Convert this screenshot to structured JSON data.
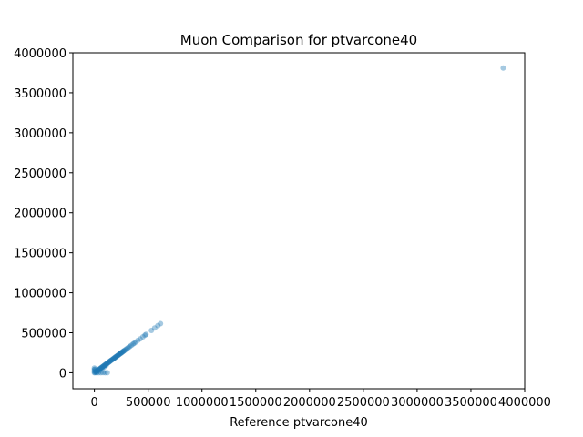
{
  "chart_data": {
    "type": "scatter",
    "title": "Muon Comparison for ptvarcone40",
    "xlabel": "Reference ptvarcone40",
    "ylabel": "",
    "xlim": [
      -200000,
      4000000
    ],
    "ylim": [
      -200000,
      4000000
    ],
    "xticks": [
      0,
      500000,
      1000000,
      1500000,
      2000000,
      2500000,
      3000000,
      3500000,
      4000000
    ],
    "xtick_labels": [
      "0",
      "500000",
      "1000000",
      "1500000",
      "2000000",
      "2500000",
      "3000000",
      "3500000",
      "4000000"
    ],
    "yticks": [
      0,
      500000,
      1000000,
      1500000,
      2000000,
      2500000,
      3000000,
      3500000,
      4000000
    ],
    "ytick_labels": [
      "0",
      "500000",
      "1000000",
      "1500000",
      "2000000",
      "2500000",
      "3000000",
      "3500000",
      "4000000"
    ],
    "grid": false,
    "marker_color": "#1f77b4",
    "marker_alpha": 0.4,
    "points": [
      [
        0,
        0
      ],
      [
        5000,
        3000
      ],
      [
        10000,
        8000
      ],
      [
        15000,
        14000
      ],
      [
        20000,
        19000
      ],
      [
        25000,
        24000
      ],
      [
        30000,
        29000
      ],
      [
        35000,
        34000
      ],
      [
        40000,
        38000
      ],
      [
        45000,
        44000
      ],
      [
        50000,
        49000
      ],
      [
        55000,
        54000
      ],
      [
        60000,
        58000
      ],
      [
        65000,
        64000
      ],
      [
        70000,
        69000
      ],
      [
        75000,
        74000
      ],
      [
        80000,
        79000
      ],
      [
        85000,
        84000
      ],
      [
        90000,
        89000
      ],
      [
        95000,
        94000
      ],
      [
        100000,
        99000
      ],
      [
        105000,
        104000
      ],
      [
        110000,
        109000
      ],
      [
        115000,
        114000
      ],
      [
        120000,
        119000
      ],
      [
        125000,
        124000
      ],
      [
        130000,
        129000
      ],
      [
        135000,
        134000
      ],
      [
        140000,
        139000
      ],
      [
        145000,
        144000
      ],
      [
        150000,
        149000
      ],
      [
        155000,
        154000
      ],
      [
        160000,
        159000
      ],
      [
        165000,
        164000
      ],
      [
        170000,
        169000
      ],
      [
        175000,
        174000
      ],
      [
        180000,
        179000
      ],
      [
        185000,
        184000
      ],
      [
        190000,
        189000
      ],
      [
        195000,
        194000
      ],
      [
        200000,
        199000
      ],
      [
        205000,
        204000
      ],
      [
        210000,
        209000
      ],
      [
        215000,
        214000
      ],
      [
        220000,
        219000
      ],
      [
        225000,
        224000
      ],
      [
        230000,
        229000
      ],
      [
        235000,
        234000
      ],
      [
        240000,
        239000
      ],
      [
        245000,
        244000
      ],
      [
        250000,
        249000
      ],
      [
        255000,
        254000
      ],
      [
        260000,
        259000
      ],
      [
        265000,
        264000
      ],
      [
        270000,
        269000
      ],
      [
        275000,
        274000
      ],
      [
        280000,
        279000
      ],
      [
        290000,
        289000
      ],
      [
        300000,
        299000
      ],
      [
        310000,
        309000
      ],
      [
        320000,
        319000
      ],
      [
        330000,
        329000
      ],
      [
        345000,
        344000
      ],
      [
        360000,
        359000
      ],
      [
        370000,
        369000
      ],
      [
        385000,
        384000
      ],
      [
        405000,
        404000
      ],
      [
        425000,
        424000
      ],
      [
        450000,
        449000
      ],
      [
        470000,
        469000
      ],
      [
        480000,
        479000
      ],
      [
        530000,
        529000
      ],
      [
        560000,
        559000
      ],
      [
        590000,
        590000
      ],
      [
        615000,
        614000
      ],
      [
        20000,
        0
      ],
      [
        40000,
        0
      ],
      [
        60000,
        0
      ],
      [
        80000,
        2000
      ],
      [
        100000,
        0
      ],
      [
        120000,
        0
      ],
      [
        0,
        20000
      ],
      [
        0,
        40000
      ],
      [
        5000,
        45000
      ],
      [
        10000,
        30000
      ],
      [
        25000,
        10000
      ],
      [
        50000,
        30000
      ],
      [
        70000,
        50000
      ],
      [
        90000,
        70000
      ],
      [
        110000,
        95000
      ],
      [
        0,
        60000
      ],
      [
        3800000,
        3810000
      ]
    ]
  }
}
